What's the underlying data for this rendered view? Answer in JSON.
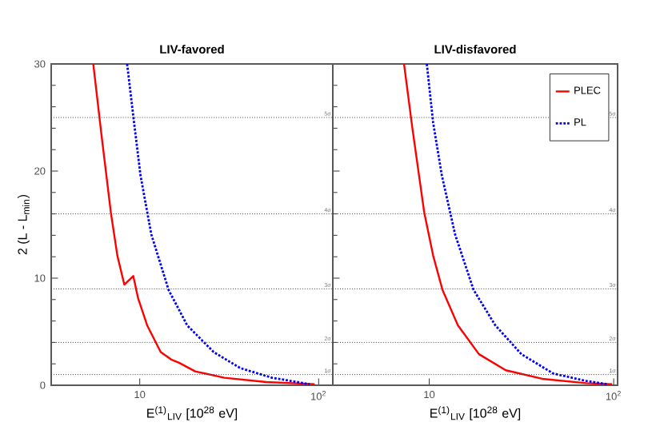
{
  "chart_data": [
    {
      "type": "line",
      "title": "LIV-favored",
      "xlabel": "E$^{(1)}$$_{LIV}$ [10$^{28}$ eV]",
      "ylabel": "2 (L - L$_{min}$)",
      "log": "x",
      "xlim": [
        3.2,
        120
      ],
      "ylim": [
        0,
        30
      ],
      "xticks": [
        10,
        {
          "value": 100,
          "label": "10$^{2}$"
        }
      ],
      "yticks": [
        0,
        10,
        20,
        30
      ],
      "series": [
        {
          "color": "#ff0000",
          "line_style": "solid",
          "x": [
            5.5,
            6.1,
            6.9,
            7.5,
            8.2,
            9.2,
            9.8,
            11.0,
            13.1,
            15.0,
            16.6,
            20.4,
            29.7,
            51,
            95
          ],
          "values": [
            30,
            23.5,
            16.1,
            12.1,
            9.4,
            10.2,
            8.1,
            5.6,
            3.1,
            2.4,
            2.1,
            1.3,
            0.7,
            0.3,
            0.1
          ]
        },
        {
          "color": "#0000ff",
          "line_style": "dotted",
          "x": [
            8.5,
            9.3,
            10.1,
            11.6,
            14.5,
            18.4,
            25.9,
            36.5,
            55,
            89
          ],
          "values": [
            30,
            24.5,
            19.6,
            14.1,
            8.9,
            5.6,
            3.1,
            1.6,
            0.7,
            0.1
          ]
        }
      ],
      "ref_lines": [
        {
          "axis": "y",
          "value": 1,
          "label": "1σ",
          "line_style": "dotted"
        },
        {
          "axis": "y",
          "value": 4,
          "label": "2σ",
          "line_style": "dotted"
        },
        {
          "axis": "y",
          "value": 9,
          "label": "3σ",
          "line_style": "dotted"
        },
        {
          "axis": "y",
          "value": 16,
          "label": "4σ",
          "line_style": "dotted"
        },
        {
          "axis": "y",
          "value": 25,
          "label": "5σ",
          "line_style": "dotted"
        }
      ]
    },
    {
      "type": "line",
      "title": "LIV-disfavored",
      "xlabel": "E$^{(1)}$$_{LIV}$ [10$^{28}$ eV]",
      "log": "x",
      "xlim": [
        3.0,
        105
      ],
      "ylim": [
        0,
        30
      ],
      "xticks": [
        10,
        {
          "value": 100,
          "label": "10$^{2}$"
        }
      ],
      "yticks": [
        {
          "value": 0,
          "label": null
        },
        {
          "value": 10,
          "label": null
        },
        {
          "value": 20,
          "label": null
        },
        {
          "value": 30,
          "label": null
        }
      ],
      "tick_labels": "x",
      "legend": "top right",
      "series": [
        {
          "name": "PLEC",
          "color": "#ff0000",
          "line_style": "solid",
          "x": [
            7.3,
            8.1,
            9.4,
            10.5,
            11.8,
            14.3,
            18.6,
            26,
            41,
            71,
            98
          ],
          "values": [
            30,
            24.0,
            16.1,
            12.1,
            8.9,
            5.6,
            2.9,
            1.4,
            0.6,
            0.2,
            0.1
          ]
        },
        {
          "name": "PL",
          "color": "#0000ff",
          "line_style": "dotted",
          "x": [
            9.7,
            10.5,
            11.7,
            13.8,
            17.4,
            22.8,
            31.6,
            47,
            71,
            92
          ],
          "values": [
            30,
            24.5,
            19.6,
            14.1,
            8.9,
            5.6,
            2.9,
            1.1,
            0.4,
            0.1
          ]
        }
      ],
      "ref_lines": [
        {
          "axis": "y",
          "value": 1,
          "label": "1σ",
          "line_style": "dotted"
        },
        {
          "axis": "y",
          "value": 4,
          "label": "2σ",
          "line_style": "dotted"
        },
        {
          "axis": "y",
          "value": 9,
          "label": "3σ",
          "line_style": "dotted"
        },
        {
          "axis": "y",
          "value": 16,
          "label": "4σ",
          "line_style": "dotted"
        },
        {
          "axis": "y",
          "value": 25,
          "label": "5σ",
          "line_style": "dotted"
        }
      ]
    }
  ]
}
